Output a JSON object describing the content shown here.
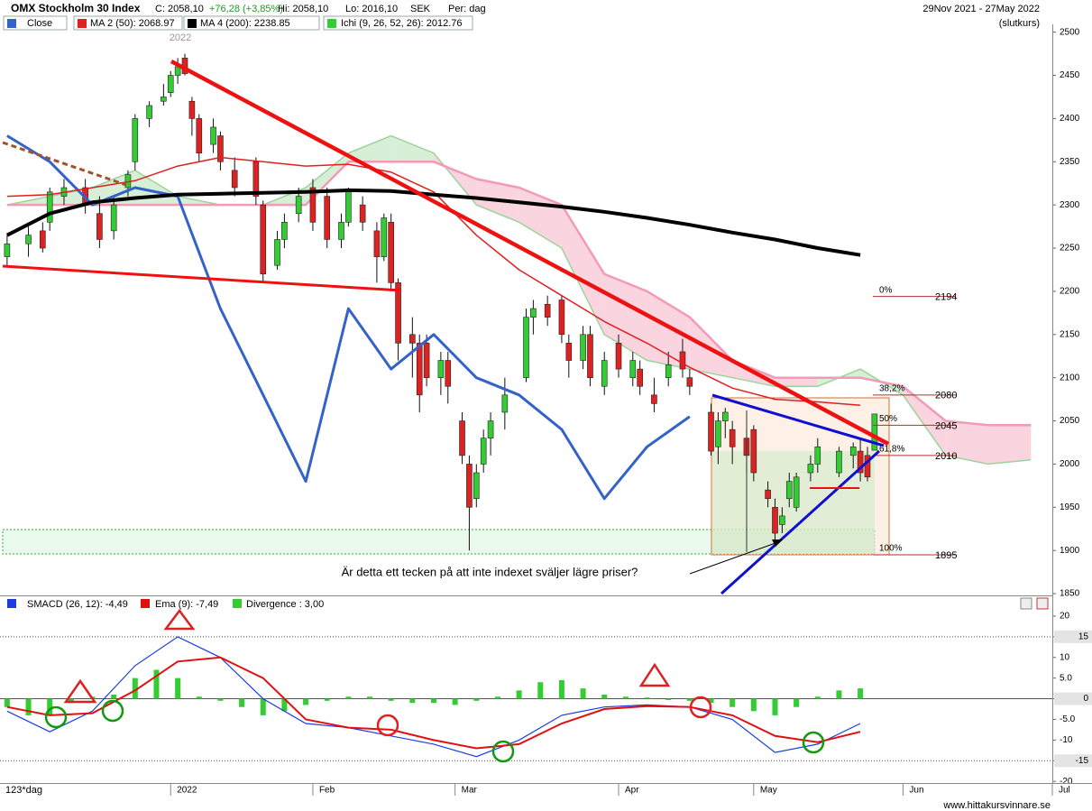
{
  "header": {
    "quote": "C: 2058,10",
    "change": "+76,28 (+3,85%)",
    "high": "Hi: 2058,10",
    "low": "Lo: 2016,10",
    "currency": "SEK",
    "period": "Per: dag",
    "range": "29Nov 2021 - 27May 2022",
    "basis": "(slutkurs)",
    "period_label": "123*dag",
    "footer": "www.hittakursvinnare.se"
  },
  "chart_data": [
    {
      "type": "candlestick",
      "title": "OMX Stockholm 30 Index",
      "xlim": [
        -1,
        147
      ],
      "xticks": [
        {
          "value": 23,
          "label": "2022"
        },
        {
          "value": 43,
          "label": "Feb"
        },
        {
          "value": 63,
          "label": "Mar"
        },
        {
          "value": 86,
          "label": "Apr"
        },
        {
          "value": 105,
          "label": "May"
        },
        {
          "value": 126,
          "label": "Jun"
        },
        {
          "value": 147,
          "label": "Jul"
        }
      ],
      "ylim": [
        1848,
        2509
      ],
      "yticks": [
        1850,
        1900,
        1950,
        2000,
        2050,
        2100,
        2150,
        2200,
        2250,
        2300,
        2350,
        2400,
        2450,
        2500
      ],
      "up_color": "#33cc33",
      "down_color": "#dd2222",
      "candles": [
        {
          "x": 0,
          "open": 2240,
          "high": 2265,
          "low": 2230,
          "close": 2255
        },
        {
          "x": 3,
          "open": 2255,
          "high": 2275,
          "low": 2240,
          "close": 2265
        },
        {
          "x": 5,
          "open": 2270,
          "high": 2280,
          "low": 2245,
          "close": 2250
        },
        {
          "x": 6,
          "open": 2280,
          "high": 2320,
          "low": 2270,
          "close": 2315
        },
        {
          "x": 8,
          "open": 2310,
          "high": 2330,
          "low": 2300,
          "close": 2320
        },
        {
          "x": 11,
          "open": 2320,
          "high": 2330,
          "low": 2290,
          "close": 2300
        },
        {
          "x": 13,
          "open": 2290,
          "high": 2310,
          "low": 2250,
          "close": 2260
        },
        {
          "x": 15,
          "open": 2270,
          "high": 2310,
          "low": 2260,
          "close": 2300
        },
        {
          "x": 17,
          "open": 2320,
          "high": 2340,
          "low": 2310,
          "close": 2335
        },
        {
          "x": 18,
          "open": 2350,
          "high": 2405,
          "low": 2340,
          "close": 2400
        },
        {
          "x": 20,
          "open": 2400,
          "high": 2420,
          "low": 2390,
          "close": 2415
        },
        {
          "x": 22,
          "open": 2420,
          "high": 2440,
          "low": 2415,
          "close": 2425
        },
        {
          "x": 23,
          "open": 2430,
          "high": 2455,
          "low": 2425,
          "close": 2450
        },
        {
          "x": 24,
          "open": 2450,
          "high": 2470,
          "low": 2440,
          "close": 2460
        },
        {
          "x": 25,
          "open": 2470,
          "high": 2475,
          "low": 2450,
          "close": 2452
        },
        {
          "x": 26,
          "open": 2420,
          "high": 2425,
          "low": 2380,
          "close": 2400
        },
        {
          "x": 27,
          "open": 2400,
          "high": 2405,
          "low": 2350,
          "close": 2360
        },
        {
          "x": 29,
          "open": 2370,
          "high": 2400,
          "low": 2360,
          "close": 2390
        },
        {
          "x": 30,
          "open": 2380,
          "high": 2385,
          "low": 2340,
          "close": 2350
        },
        {
          "x": 32,
          "open": 2340,
          "high": 2355,
          "low": 2310,
          "close": 2320
        },
        {
          "x": 35,
          "open": 2350,
          "high": 2355,
          "low": 2300,
          "close": 2310
        },
        {
          "x": 36,
          "open": 2300,
          "high": 2305,
          "low": 2210,
          "close": 2220
        },
        {
          "x": 38,
          "open": 2230,
          "high": 2270,
          "low": 2225,
          "close": 2260
        },
        {
          "x": 39,
          "open": 2260,
          "high": 2290,
          "low": 2250,
          "close": 2280
        },
        {
          "x": 41,
          "open": 2290,
          "high": 2320,
          "low": 2280,
          "close": 2310
        },
        {
          "x": 43,
          "open": 2320,
          "high": 2330,
          "low": 2270,
          "close": 2280
        },
        {
          "x": 45,
          "open": 2310,
          "high": 2320,
          "low": 2250,
          "close": 2260
        },
        {
          "x": 47,
          "open": 2260,
          "high": 2290,
          "low": 2250,
          "close": 2280
        },
        {
          "x": 48,
          "open": 2280,
          "high": 2320,
          "low": 2275,
          "close": 2315
        },
        {
          "x": 50,
          "open": 2300,
          "high": 2310,
          "low": 2270,
          "close": 2280
        },
        {
          "x": 52,
          "open": 2270,
          "high": 2280,
          "low": 2210,
          "close": 2240
        },
        {
          "x": 53,
          "open": 2240,
          "high": 2290,
          "low": 2235,
          "close": 2285
        },
        {
          "x": 54,
          "open": 2280,
          "high": 2290,
          "low": 2200,
          "close": 2210
        },
        {
          "x": 55,
          "open": 2210,
          "high": 2215,
          "low": 2120,
          "close": 2140
        },
        {
          "x": 57,
          "open": 2150,
          "high": 2170,
          "low": 2100,
          "close": 2140
        },
        {
          "x": 58,
          "open": 2140,
          "high": 2150,
          "low": 2060,
          "close": 2080
        },
        {
          "x": 59,
          "open": 2140,
          "high": 2150,
          "low": 2090,
          "close": 2100
        },
        {
          "x": 61,
          "open": 2100,
          "high": 2130,
          "low": 2080,
          "close": 2120
        },
        {
          "x": 62,
          "open": 2120,
          "high": 2130,
          "low": 2070,
          "close": 2090
        },
        {
          "x": 64,
          "open": 2050,
          "high": 2060,
          "low": 2000,
          "close": 2010
        },
        {
          "x": 65,
          "open": 2000,
          "high": 2010,
          "low": 1900,
          "close": 1950
        },
        {
          "x": 66,
          "open": 1960,
          "high": 2000,
          "low": 1950,
          "close": 1990
        },
        {
          "x": 67,
          "open": 2000,
          "high": 2040,
          "low": 1990,
          "close": 2030
        },
        {
          "x": 68,
          "open": 2030,
          "high": 2060,
          "low": 2010,
          "close": 2050
        },
        {
          "x": 70,
          "open": 2060,
          "high": 2100,
          "low": 2040,
          "close": 2080
        },
        {
          "x": 73,
          "open": 2100,
          "high": 2180,
          "low": 2095,
          "close": 2170
        },
        {
          "x": 74,
          "open": 2170,
          "high": 2190,
          "low": 2150,
          "close": 2180
        },
        {
          "x": 76,
          "open": 2185,
          "high": 2195,
          "low": 2160,
          "close": 2170
        },
        {
          "x": 78,
          "open": 2190,
          "high": 2195,
          "low": 2140,
          "close": 2150
        },
        {
          "x": 79,
          "open": 2140,
          "high": 2150,
          "low": 2100,
          "close": 2120
        },
        {
          "x": 81,
          "open": 2120,
          "high": 2160,
          "low": 2110,
          "close": 2150
        },
        {
          "x": 82,
          "open": 2150,
          "high": 2160,
          "low": 2090,
          "close": 2100
        },
        {
          "x": 84,
          "open": 2090,
          "high": 2130,
          "low": 2080,
          "close": 2120
        },
        {
          "x": 86,
          "open": 2140,
          "high": 2150,
          "low": 2100,
          "close": 2110
        },
        {
          "x": 88,
          "open": 2100,
          "high": 2130,
          "low": 2090,
          "close": 2120
        },
        {
          "x": 89,
          "open": 2110,
          "high": 2120,
          "low": 2080,
          "close": 2090
        },
        {
          "x": 91,
          "open": 2080,
          "high": 2100,
          "low": 2060,
          "close": 2070
        },
        {
          "x": 93,
          "open": 2100,
          "high": 2130,
          "low": 2090,
          "close": 2115
        },
        {
          "x": 95,
          "open": 2130,
          "high": 2145,
          "low": 2100,
          "close": 2110
        },
        {
          "x": 96,
          "open": 2100,
          "high": 2110,
          "low": 2080,
          "close": 2090
        },
        {
          "x": 99,
          "open": 2060,
          "high": 2070,
          "low": 2010,
          "close": 2015
        },
        {
          "x": 100,
          "open": 2020,
          "high": 2060,
          "low": 2000,
          "close": 2050
        },
        {
          "x": 101,
          "open": 2050,
          "high": 2065,
          "low": 2030,
          "close": 2060
        },
        {
          "x": 102,
          "open": 2040,
          "high": 2050,
          "low": 2000,
          "close": 2020
        },
        {
          "x": 104,
          "open": 2030,
          "high": 2040,
          "low": 1990,
          "close": 2010
        },
        {
          "x": 105,
          "open": 2040,
          "high": 2045,
          "low": 1980,
          "close": 1990
        },
        {
          "x": 107,
          "open": 1970,
          "high": 1980,
          "low": 1950,
          "close": 1960
        },
        {
          "x": 108,
          "open": 1950,
          "high": 1960,
          "low": 1910,
          "close": 1920
        },
        {
          "x": 109,
          "open": 1930,
          "high": 1950,
          "low": 1920,
          "close": 1940
        },
        {
          "x": 110,
          "open": 1960,
          "high": 1990,
          "low": 1950,
          "close": 1980
        },
        {
          "x": 111,
          "open": 1950,
          "high": 1990,
          "low": 1945,
          "close": 1985
        },
        {
          "x": 113,
          "open": 1990,
          "high": 2010,
          "low": 1980,
          "close": 2000
        },
        {
          "x": 114,
          "open": 2000,
          "high": 2030,
          "low": 1990,
          "close": 2020
        },
        {
          "x": 117,
          "open": 1990,
          "high": 2020,
          "low": 1985,
          "close": 2015
        },
        {
          "x": 119,
          "open": 2010,
          "high": 2025,
          "low": 1995,
          "close": 2020
        },
        {
          "x": 120,
          "open": 2015,
          "high": 2030,
          "low": 1980,
          "close": 1990
        },
        {
          "x": 121,
          "open": 2010,
          "high": 2020,
          "low": 1980,
          "close": 1985
        },
        {
          "x": 122,
          "open": 2016,
          "high": 2058,
          "low": 2016,
          "close": 2058
        }
      ],
      "x": [
        0,
        6,
        12,
        18,
        24,
        30,
        36,
        42,
        48,
        54,
        60,
        66,
        72,
        78,
        84,
        90,
        96,
        102,
        108,
        114,
        120
      ],
      "series": [
        {
          "name": "Close",
          "color": "#3462c8",
          "width": 3,
          "values": [
            2380,
            2350,
            2300,
            2320,
            2310,
            2180,
            2080,
            1980,
            2180,
            2110,
            2150,
            2100,
            2080,
            2040,
            1960,
            2020,
            2055,
            null,
            null,
            null,
            null
          ]
        },
        {
          "name": "MA 2 (50): 2068.97",
          "color": "#e02020",
          "width": 1.5,
          "values": [
            2310,
            2312,
            2320,
            2328,
            2345,
            2355,
            2350,
            2345,
            2347,
            2338,
            2315,
            2265,
            2225,
            2195,
            2165,
            2140,
            2112,
            2088,
            2075,
            2072,
            2068
          ]
        },
        {
          "name": "MA 4 (200): 2238.85",
          "color": "#000000",
          "width": 4,
          "values": [
            2265,
            2290,
            2303,
            2308,
            2312,
            2313,
            2314,
            2315,
            2317,
            2316,
            2312,
            2308,
            2303,
            2298,
            2292,
            2285,
            2277,
            2268,
            2260,
            2250,
            2242
          ]
        }
      ],
      "cloud": {
        "name": "Ichi (9, 26, 52, 26): 2012.76",
        "color": "#33cc33",
        "x": [
          0,
          6,
          12,
          18,
          24,
          30,
          36,
          42,
          48,
          54,
          60,
          66,
          72,
          78,
          84,
          90,
          96,
          102,
          108,
          114,
          120,
          126,
          132,
          138,
          144
        ],
        "span_a": [
          2300,
          2310,
          2320,
          2340,
          2310,
          2300,
          2300,
          2320,
          2360,
          2380,
          2360,
          2300,
          2280,
          2250,
          2150,
          2120,
          2110,
          2100,
          2090,
          2090,
          2110,
          2080,
          2010,
          2000,
          2005
        ],
        "span_b": [
          2300,
          2300,
          2300,
          2300,
          2300,
          2300,
          2300,
          2300,
          2350,
          2350,
          2350,
          2330,
          2320,
          2300,
          2220,
          2200,
          2170,
          2120,
          2100,
          2100,
          2100,
          2090,
          2050,
          2045,
          2045
        ],
        "colors": [
          "#cfeccf",
          "#f9cdd9"
        ],
        "line_colors": [
          "#9bd49b",
          "#f39ab8"
        ]
      },
      "fibonacci": [
        {
          "label": "0%",
          "value": 2194
        },
        {
          "label": "38,2%",
          "value": 2080
        },
        {
          "label": "50%",
          "value": 2045
        },
        {
          "label": "61,8%",
          "value": 2010
        },
        {
          "label": "100%",
          "value": 1895
        }
      ],
      "annotation": "Är detta ett tecken på att inte indexet sväljer lägre priser?"
    },
    {
      "type": "macd",
      "xlim": [
        -1,
        147
      ],
      "ylim": [
        -20.4,
        21.3
      ],
      "yticks": [
        20,
        15,
        10,
        {
          "value": 5,
          "label": "5.0"
        },
        0,
        {
          "value": -5,
          "label": "-5.0"
        },
        -10,
        -15,
        -20
      ],
      "levels": [
        15,
        -15
      ],
      "x": [
        0,
        6,
        12,
        18,
        24,
        30,
        36,
        42,
        48,
        54,
        60,
        66,
        72,
        78,
        84,
        90,
        96,
        102,
        108,
        114,
        120
      ],
      "series": [
        {
          "name": "SMACD (26, 12): -4,49",
          "color": "#1c3ce0",
          "values": [
            -3,
            -8,
            -3,
            8,
            15,
            10,
            0,
            -6,
            -7,
            -9,
            -11,
            -14,
            -10,
            -4,
            -2,
            -1.5,
            -2,
            -5,
            -13,
            -11,
            -6
          ]
        },
        {
          "name": "Ema (9): -7,49",
          "color": "#e01010",
          "values": [
            -2,
            -4,
            -3.5,
            2,
            9,
            10,
            5,
            -5,
            -7,
            -7.5,
            -10,
            -12,
            -11,
            -6,
            -2.5,
            -1.8,
            -2,
            -4,
            -9,
            -10.5,
            -8
          ]
        }
      ],
      "bars": {
        "name": "Divergence : 3,00",
        "color": "#33cc33",
        "x": [
          0,
          3,
          6,
          9,
          12,
          15,
          18,
          21,
          24,
          27,
          30,
          33,
          36,
          39,
          42,
          45,
          48,
          51,
          54,
          57,
          60,
          63,
          66,
          69,
          72,
          75,
          78,
          81,
          84,
          87,
          90,
          93,
          96,
          99,
          102,
          105,
          108,
          111,
          114,
          117,
          120
        ],
        "values": [
          -2,
          -4,
          -4,
          -1,
          0.5,
          1,
          5,
          7,
          5,
          0.5,
          -0.5,
          -2,
          -4,
          -3,
          -1.5,
          -0.5,
          0.5,
          0.5,
          -0.5,
          -1,
          -1,
          -1.5,
          -0.5,
          0.5,
          2,
          4,
          4.5,
          2.5,
          1,
          0.5,
          0.3,
          -0.3,
          -0.5,
          -1,
          -2,
          -3,
          -4,
          -2,
          0.5,
          2,
          2.5
        ]
      }
    }
  ]
}
